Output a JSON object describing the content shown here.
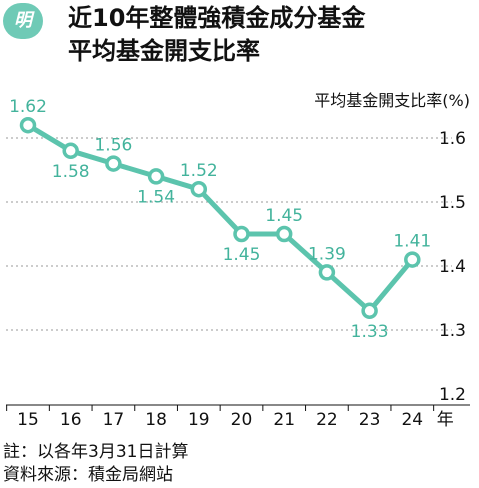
{
  "header": {
    "badge": "明",
    "title_line1": "近10年整體強積金成分基金",
    "title_line2": "平均基金開支比率"
  },
  "chart_data": {
    "type": "line",
    "title": "近10年整體強積金成分基金平均基金開支比率",
    "ylabel": "平均基金開支比率(%)",
    "xlabel": "年",
    "categories": [
      "15",
      "16",
      "17",
      "18",
      "19",
      "20",
      "21",
      "22",
      "23",
      "24"
    ],
    "values": [
      1.62,
      1.58,
      1.56,
      1.54,
      1.52,
      1.45,
      1.45,
      1.39,
      1.33,
      1.41
    ],
    "data_labels": [
      "1.62",
      "1.58",
      "1.56",
      "1.54",
      "1.52",
      "1.45",
      "1.45",
      "1.39",
      "1.33",
      "1.41"
    ],
    "label_positions": [
      "above",
      "below",
      "above",
      "below",
      "above",
      "below",
      "above",
      "above",
      "below",
      "above"
    ],
    "ylim": [
      1.2,
      1.65
    ],
    "yticks": [
      1.6,
      1.5,
      1.4,
      1.3,
      1.2
    ],
    "ytick_labels": [
      "1.6",
      "1.5",
      "1.4",
      "1.3",
      "1.2"
    ],
    "y_axis_side": "right",
    "grid": "horizontal dashed",
    "line_color": "#5cc4ad",
    "label_color": "#43b39c",
    "grid_color": "#999999"
  },
  "footer": {
    "note": "註：以各年3月31日計算",
    "source": "資料來源：積金局網站"
  }
}
